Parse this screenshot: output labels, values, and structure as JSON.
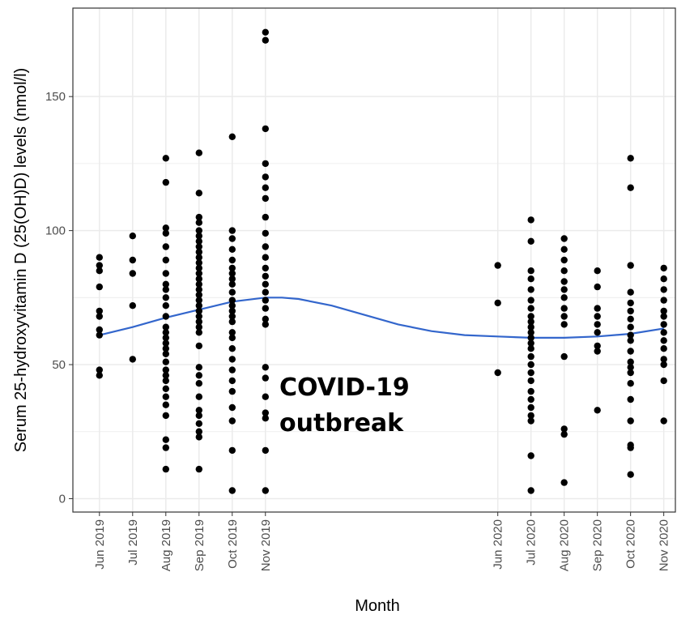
{
  "chart_data": {
    "type": "scatter",
    "title": "",
    "xlabel": "Month",
    "ylabel": "Serum 25-hydroxyvitamin D (25(OH)D) levels (nmol/l)",
    "annotation": [
      "COVID-19",
      "outbreak"
    ],
    "categories": [
      "Jun 2019",
      "Jul 2019",
      "Aug 2019",
      "Sep 2019",
      "Oct 2019",
      "Nov 2019",
      "Jun 2020",
      "Jul 2020",
      "Aug 2020",
      "Sep 2020",
      "Oct 2020",
      "Nov 2020"
    ],
    "category_months": [
      0,
      1,
      2,
      3,
      4,
      5,
      12,
      13,
      14,
      15,
      16,
      17
    ],
    "y_ticks": [
      0,
      50,
      100,
      150
    ],
    "ylim": [
      -5,
      183
    ],
    "xlim": [
      -0.8,
      17.35
    ],
    "grid": true,
    "legend": "none",
    "colors": {
      "points": "#000000",
      "smooth": "#3366cc",
      "grid": "#ebebeb",
      "border": "#333333"
    },
    "points": [
      [
        0,
        90
      ],
      [
        0,
        87
      ],
      [
        0,
        85
      ],
      [
        0,
        79
      ],
      [
        0,
        70
      ],
      [
        0,
        68
      ],
      [
        0,
        63
      ],
      [
        0,
        61
      ],
      [
        0,
        48
      ],
      [
        0,
        46
      ],
      [
        1,
        98
      ],
      [
        1,
        89
      ],
      [
        1,
        84
      ],
      [
        1,
        72
      ],
      [
        1,
        52
      ],
      [
        2,
        127
      ],
      [
        2,
        118
      ],
      [
        2,
        101
      ],
      [
        2,
        99
      ],
      [
        2,
        94
      ],
      [
        2,
        89
      ],
      [
        2,
        84
      ],
      [
        2,
        80
      ],
      [
        2,
        78
      ],
      [
        2,
        75
      ],
      [
        2,
        72
      ],
      [
        2,
        68
      ],
      [
        2,
        64
      ],
      [
        2,
        62
      ],
      [
        2,
        60
      ],
      [
        2,
        58
      ],
      [
        2,
        56
      ],
      [
        2,
        54
      ],
      [
        2,
        51
      ],
      [
        2,
        48
      ],
      [
        2,
        46
      ],
      [
        2,
        44
      ],
      [
        2,
        41
      ],
      [
        2,
        38
      ],
      [
        2,
        35
      ],
      [
        2,
        31
      ],
      [
        2,
        22
      ],
      [
        2,
        19
      ],
      [
        2,
        11
      ],
      [
        3,
        129
      ],
      [
        3,
        114
      ],
      [
        3,
        105
      ],
      [
        3,
        103
      ],
      [
        3,
        100
      ],
      [
        3,
        98
      ],
      [
        3,
        96
      ],
      [
        3,
        94
      ],
      [
        3,
        92
      ],
      [
        3,
        90
      ],
      [
        3,
        88
      ],
      [
        3,
        86
      ],
      [
        3,
        84
      ],
      [
        3,
        82
      ],
      [
        3,
        80
      ],
      [
        3,
        78
      ],
      [
        3,
        76
      ],
      [
        3,
        74
      ],
      [
        3,
        72
      ],
      [
        3,
        70
      ],
      [
        3,
        68
      ],
      [
        3,
        66
      ],
      [
        3,
        64
      ],
      [
        3,
        62
      ],
      [
        3,
        57
      ],
      [
        3,
        49
      ],
      [
        3,
        46
      ],
      [
        3,
        43
      ],
      [
        3,
        38
      ],
      [
        3,
        33
      ],
      [
        3,
        31
      ],
      [
        3,
        28
      ],
      [
        3,
        25
      ],
      [
        3,
        23
      ],
      [
        3,
        11
      ],
      [
        4,
        135
      ],
      [
        4,
        100
      ],
      [
        4,
        97
      ],
      [
        4,
        93
      ],
      [
        4,
        89
      ],
      [
        4,
        86
      ],
      [
        4,
        84
      ],
      [
        4,
        82
      ],
      [
        4,
        80
      ],
      [
        4,
        77
      ],
      [
        4,
        74
      ],
      [
        4,
        72
      ],
      [
        4,
        70
      ],
      [
        4,
        68
      ],
      [
        4,
        66
      ],
      [
        4,
        62
      ],
      [
        4,
        60
      ],
      [
        4,
        56
      ],
      [
        4,
        52
      ],
      [
        4,
        48
      ],
      [
        4,
        44
      ],
      [
        4,
        40
      ],
      [
        4,
        34
      ],
      [
        4,
        29
      ],
      [
        4,
        18
      ],
      [
        4,
        3
      ],
      [
        5,
        174
      ],
      [
        5,
        171
      ],
      [
        5,
        138
      ],
      [
        5,
        125
      ],
      [
        5,
        120
      ],
      [
        5,
        116
      ],
      [
        5,
        112
      ],
      [
        5,
        105
      ],
      [
        5,
        99
      ],
      [
        5,
        94
      ],
      [
        5,
        90
      ],
      [
        5,
        86
      ],
      [
        5,
        83
      ],
      [
        5,
        80
      ],
      [
        5,
        77
      ],
      [
        5,
        74
      ],
      [
        5,
        71
      ],
      [
        5,
        67
      ],
      [
        5,
        65
      ],
      [
        5,
        49
      ],
      [
        5,
        45
      ],
      [
        5,
        38
      ],
      [
        5,
        32
      ],
      [
        5,
        30
      ],
      [
        5,
        18
      ],
      [
        5,
        3
      ],
      [
        12,
        87
      ],
      [
        12,
        73
      ],
      [
        12,
        47
      ],
      [
        13,
        104
      ],
      [
        13,
        96
      ],
      [
        13,
        85
      ],
      [
        13,
        82
      ],
      [
        13,
        78
      ],
      [
        13,
        74
      ],
      [
        13,
        71
      ],
      [
        13,
        68
      ],
      [
        13,
        66
      ],
      [
        13,
        64
      ],
      [
        13,
        62
      ],
      [
        13,
        60
      ],
      [
        13,
        58
      ],
      [
        13,
        56
      ],
      [
        13,
        53
      ],
      [
        13,
        50
      ],
      [
        13,
        47
      ],
      [
        13,
        44
      ],
      [
        13,
        40
      ],
      [
        13,
        37
      ],
      [
        13,
        34
      ],
      [
        13,
        31
      ],
      [
        13,
        29
      ],
      [
        13,
        16
      ],
      [
        13,
        3
      ],
      [
        14,
        97
      ],
      [
        14,
        93
      ],
      [
        14,
        89
      ],
      [
        14,
        85
      ],
      [
        14,
        81
      ],
      [
        14,
        78
      ],
      [
        14,
        75
      ],
      [
        14,
        71
      ],
      [
        14,
        68
      ],
      [
        14,
        65
      ],
      [
        14,
        53
      ],
      [
        14,
        26
      ],
      [
        14,
        24
      ],
      [
        14,
        6
      ],
      [
        15,
        85
      ],
      [
        15,
        79
      ],
      [
        15,
        71
      ],
      [
        15,
        68
      ],
      [
        15,
        65
      ],
      [
        15,
        62
      ],
      [
        15,
        57
      ],
      [
        15,
        55
      ],
      [
        15,
        33
      ],
      [
        16,
        127
      ],
      [
        16,
        116
      ],
      [
        16,
        87
      ],
      [
        16,
        77
      ],
      [
        16,
        73
      ],
      [
        16,
        70
      ],
      [
        16,
        67
      ],
      [
        16,
        64
      ],
      [
        16,
        61
      ],
      [
        16,
        59
      ],
      [
        16,
        55
      ],
      [
        16,
        51
      ],
      [
        16,
        49
      ],
      [
        16,
        47
      ],
      [
        16,
        43
      ],
      [
        16,
        37
      ],
      [
        16,
        29
      ],
      [
        16,
        20
      ],
      [
        16,
        19
      ],
      [
        16,
        9
      ],
      [
        17,
        86
      ],
      [
        17,
        82
      ],
      [
        17,
        78
      ],
      [
        17,
        74
      ],
      [
        17,
        70
      ],
      [
        17,
        68
      ],
      [
        17,
        65
      ],
      [
        17,
        62
      ],
      [
        17,
        59
      ],
      [
        17,
        56
      ],
      [
        17,
        52
      ],
      [
        17,
        50
      ],
      [
        17,
        44
      ],
      [
        17,
        29
      ]
    ],
    "smooth": [
      [
        0,
        61
      ],
      [
        1,
        64
      ],
      [
        2,
        67.5
      ],
      [
        3,
        70.5
      ],
      [
        4,
        73.5
      ],
      [
        5,
        75
      ],
      [
        5.5,
        75
      ],
      [
        6,
        74.5
      ],
      [
        7,
        72
      ],
      [
        8,
        68.5
      ],
      [
        9,
        65
      ],
      [
        10,
        62.5
      ],
      [
        11,
        61
      ],
      [
        12,
        60.5
      ],
      [
        13,
        60
      ],
      [
        14,
        60
      ],
      [
        15,
        60.5
      ],
      [
        16,
        61.5
      ],
      [
        17,
        63.5
      ]
    ]
  }
}
